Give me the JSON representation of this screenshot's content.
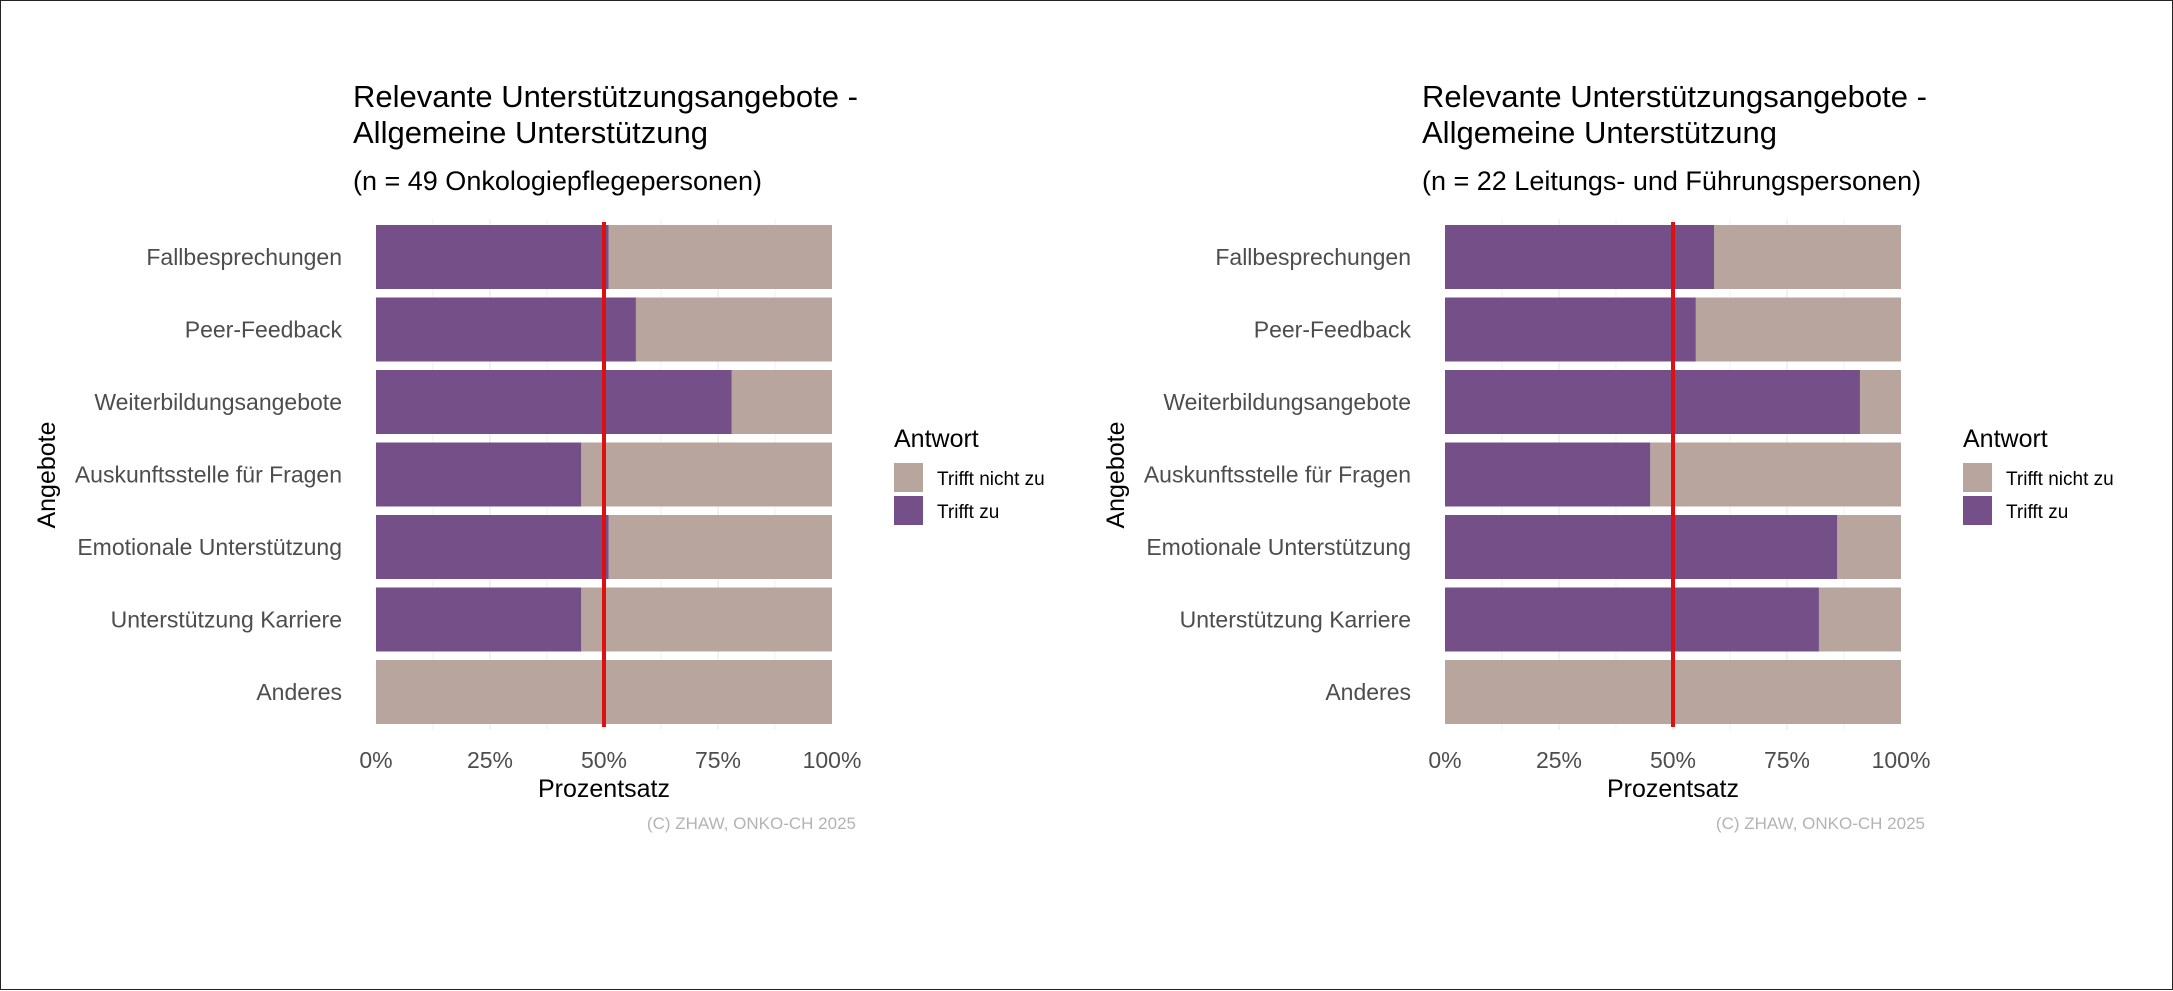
{
  "colors": {
    "trifft_zu": "#754f88",
    "trifft_nicht_zu": "#b8a59d",
    "reference_line": "#dd1111",
    "grid": "#ececec"
  },
  "chart_data": [
    {
      "type": "bar",
      "orientation": "horizontal",
      "stacked": "fill",
      "title": "Relevante Unterstützungsangebote -",
      "title_line2": "Allgemeine Unterstützung",
      "subtitle": "(n = 49 Onkologiepflegepersonen)",
      "xlabel": "Prozentsatz",
      "ylabel": "Angebote",
      "xlim": [
        0,
        100
      ],
      "x_ticks": [
        "0%",
        "25%",
        "50%",
        "75%",
        "100%"
      ],
      "reference_line": 50,
      "categories": [
        "Fallbesprechungen",
        "Peer-Feedback",
        "Weiterbildungsangebote",
        "Auskunftsstelle für Fragen",
        "Emotionale Unterstützung",
        "Unterstützung Karriere",
        "Anderes"
      ],
      "series": [
        {
          "name": "Trifft zu",
          "values": [
            51,
            57,
            78,
            45,
            51,
            45,
            0
          ]
        },
        {
          "name": "Trifft nicht zu",
          "values": [
            49,
            43,
            22,
            55,
            49,
            55,
            100
          ]
        }
      ],
      "legend_title": "Antwort",
      "legend_items": [
        "Trifft nicht zu",
        "Trifft zu"
      ],
      "caption": "(C) ZHAW, ONKO-CH 2025"
    },
    {
      "type": "bar",
      "orientation": "horizontal",
      "stacked": "fill",
      "title": "Relevante Unterstützungsangebote -",
      "title_line2": "Allgemeine Unterstützung",
      "subtitle": "(n = 22 Leitungs- und Führungspersonen)",
      "xlabel": "Prozentsatz",
      "ylabel": "Angebote",
      "xlim": [
        0,
        100
      ],
      "x_ticks": [
        "0%",
        "25%",
        "50%",
        "75%",
        "100%"
      ],
      "reference_line": 50,
      "categories": [
        "Fallbesprechungen",
        "Peer-Feedback",
        "Weiterbildungsangebote",
        "Auskunftsstelle für Fragen",
        "Emotionale Unterstützung",
        "Unterstützung Karriere",
        "Anderes"
      ],
      "series": [
        {
          "name": "Trifft zu",
          "values": [
            59,
            55,
            91,
            45,
            86,
            82,
            0
          ]
        },
        {
          "name": "Trifft nicht zu",
          "values": [
            41,
            45,
            9,
            55,
            14,
            18,
            100
          ]
        }
      ],
      "legend_title": "Antwort",
      "legend_items": [
        "Trifft nicht zu",
        "Trifft zu"
      ],
      "caption": "(C) ZHAW, ONKO-CH 2025"
    }
  ]
}
